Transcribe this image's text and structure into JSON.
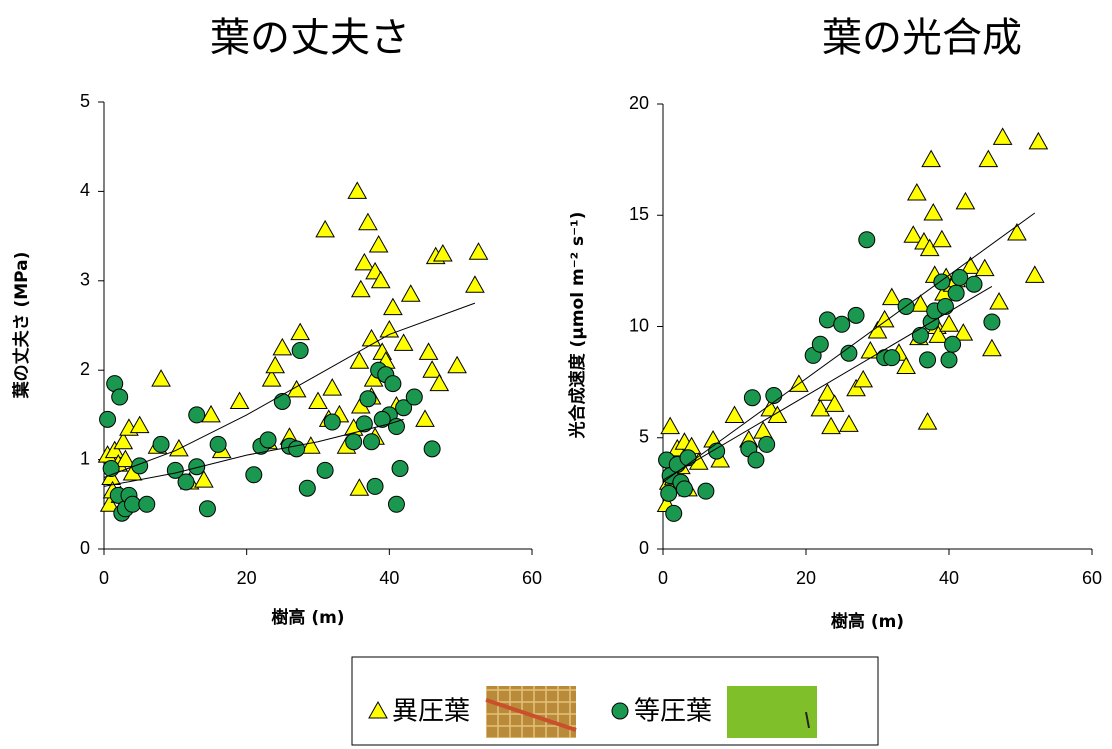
{
  "chart_data": [
    {
      "type": "scatter",
      "title": "葉の丈夫さ",
      "xlabel": "樹高 (m)",
      "ylabel": "葉の丈夫さ (MPa)",
      "xlim": [
        0,
        60
      ],
      "ylim": [
        0,
        5
      ],
      "xticks": [
        0,
        20,
        40,
        60
      ],
      "yticks": [
        0,
        1,
        2,
        3,
        4,
        5
      ],
      "series": [
        {
          "name": "異圧葉",
          "marker": "triangle",
          "color": "#ffff00",
          "x": [
            0.5,
            0.8,
            1,
            1.2,
            1.5,
            2,
            2.3,
            2.7,
            3,
            3.5,
            4,
            5,
            7.5,
            8,
            10.5,
            12,
            14,
            15,
            16.5,
            19,
            23,
            23.5,
            24,
            25,
            26,
            27,
            27.5,
            29,
            30,
            31,
            31.5,
            32,
            33,
            34,
            35,
            35.5,
            35.8,
            36,
            36.5,
            37,
            37.5,
            37.8,
            38,
            38.5,
            38.8,
            39,
            39.5,
            40,
            40.5,
            41,
            42,
            43,
            45,
            45.5,
            46,
            46.5,
            47,
            47.5,
            49.5,
            52,
            52.5,
            35.8,
            37.5,
            38,
            36
          ],
          "values": [
            1.05,
            0.5,
            0.8,
            0.65,
            1.1,
            0.95,
            0.6,
            1.2,
            1.0,
            1.35,
            0.85,
            1.38,
            1.15,
            1.9,
            1.12,
            0.75,
            0.77,
            1.5,
            1.1,
            1.65,
            1.2,
            1.9,
            2.05,
            2.25,
            1.25,
            1.78,
            2.42,
            1.15,
            1.65,
            3.57,
            1.45,
            1.8,
            1.5,
            1.15,
            1.35,
            4.0,
            2.1,
            2.9,
            3.2,
            3.65,
            2.35,
            1.9,
            3.1,
            3.4,
            3.0,
            2.2,
            2.1,
            2.45,
            2.7,
            1.6,
            2.3,
            2.85,
            1.45,
            2.2,
            2.0,
            3.27,
            1.85,
            3.3,
            2.05,
            2.95,
            3.32,
            0.68,
            1.7,
            1.25,
            1.6
          ],
          "trend": {
            "x": [
              0,
              10,
              20,
              30,
              40,
              52
            ],
            "values": [
              0.8,
              1.1,
              1.5,
              1.95,
              2.4,
              2.75
            ]
          }
        },
        {
          "name": "等圧葉",
          "marker": "circle",
          "color": "#1a9850",
          "x": [
            0.5,
            1,
            1.5,
            2,
            2.2,
            2.5,
            3,
            3.5,
            4,
            5,
            6,
            8,
            10,
            11.5,
            13,
            13,
            14.5,
            16,
            21,
            22,
            23,
            25,
            26,
            27,
            27.5,
            28.5,
            31,
            32,
            35,
            36.5,
            37,
            37.5,
            38,
            38.5,
            39.5,
            40,
            40.5,
            41,
            41,
            41.5,
            42,
            43.5,
            46,
            39
          ],
          "values": [
            1.45,
            0.9,
            1.85,
            0.6,
            1.7,
            0.4,
            0.45,
            0.6,
            0.5,
            0.93,
            0.5,
            1.17,
            0.88,
            0.75,
            0.92,
            1.5,
            0.45,
            1.17,
            0.83,
            1.15,
            1.22,
            1.65,
            1.15,
            1.12,
            2.22,
            0.68,
            0.88,
            1.42,
            1.2,
            1.4,
            1.68,
            1.2,
            0.7,
            2.0,
            1.95,
            1.5,
            1.85,
            1.37,
            0.5,
            0.9,
            1.58,
            1.7,
            1.12,
            1.45
          ],
          "trend": {
            "x": [
              0,
              10,
              20,
              30,
              40,
              42
            ],
            "values": [
              0.7,
              0.85,
              1.05,
              1.2,
              1.4,
              1.45
            ]
          }
        }
      ]
    },
    {
      "type": "scatter",
      "title": "葉の光合成",
      "xlabel": "樹高 (m)",
      "ylabel": "光合成速度 (µmol m⁻² s⁻¹)",
      "xlim": [
        0,
        60
      ],
      "ylim": [
        0,
        20
      ],
      "xticks": [
        0,
        20,
        40,
        60
      ],
      "yticks": [
        0,
        5,
        10,
        15,
        20
      ],
      "series": [
        {
          "marker": "triangle",
          "color": "#ffff00",
          "x": [
            0.5,
            0.8,
            1,
            1.2,
            1.5,
            2,
            2.5,
            3,
            3.5,
            4,
            5,
            7,
            8,
            10,
            12,
            14,
            15,
            16,
            19,
            22,
            23,
            23.5,
            24,
            26,
            27,
            28,
            29,
            30,
            31,
            32,
            33,
            34,
            35,
            35.5,
            35.8,
            36,
            36.5,
            37,
            37.3,
            37.5,
            37.8,
            38,
            38.3,
            38.5,
            39,
            39.3,
            39.6,
            40,
            40.5,
            41,
            42,
            42.3,
            43,
            45,
            45.5,
            46,
            47,
            47.5,
            49.5,
            52,
            52.5
          ],
          "values": [
            2.0,
            3.0,
            5.5,
            4.0,
            3.2,
            4.5,
            3.7,
            4.8,
            2.7,
            4.6,
            3.9,
            4.9,
            4.0,
            6.0,
            4.9,
            5.3,
            6.3,
            6.0,
            7.4,
            6.3,
            7.0,
            5.5,
            6.5,
            5.6,
            7.2,
            7.6,
            8.9,
            9.8,
            10.3,
            11.3,
            8.8,
            8.2,
            14.1,
            16.0,
            9.5,
            11.0,
            13.8,
            5.7,
            13.5,
            17.5,
            15.1,
            12.3,
            10.0,
            9.6,
            13.9,
            11.5,
            12.2,
            10.1,
            11.9,
            12.1,
            9.7,
            15.6,
            12.7,
            12.6,
            17.5,
            9.0,
            11.1,
            18.5,
            14.2,
            12.3,
            18.3
          ],
          "trend": {
            "x": [
              0,
              52
            ],
            "values": [
              3,
              15.1
            ]
          }
        },
        {
          "marker": "circle",
          "color": "#1a9850",
          "x": [
            0.5,
            0.8,
            1,
            1.5,
            2,
            2.5,
            3,
            3.5,
            6,
            7.5,
            12,
            12.5,
            13,
            14.5,
            15.5,
            21,
            22,
            23,
            25,
            26,
            27,
            28.5,
            31,
            32,
            34,
            36,
            37,
            37.5,
            38,
            39.5,
            40,
            40.5,
            41,
            41.5,
            43.5,
            46,
            39
          ],
          "values": [
            4.0,
            2.5,
            3.3,
            1.6,
            3.8,
            3.0,
            2.7,
            4.1,
            2.6,
            4.4,
            4.5,
            6.8,
            4.0,
            4.7,
            6.9,
            8.7,
            9.2,
            10.3,
            10.1,
            8.8,
            10.5,
            13.9,
            8.6,
            8.6,
            10.9,
            9.6,
            8.5,
            10.2,
            10.7,
            10.9,
            8.5,
            9.2,
            11.5,
            12.2,
            11.9,
            10.2,
            12.0
          ],
          "trend": {
            "x": [
              0,
              46
            ],
            "values": [
              3.1,
              11.8
            ]
          }
        }
      ]
    }
  ]
}
